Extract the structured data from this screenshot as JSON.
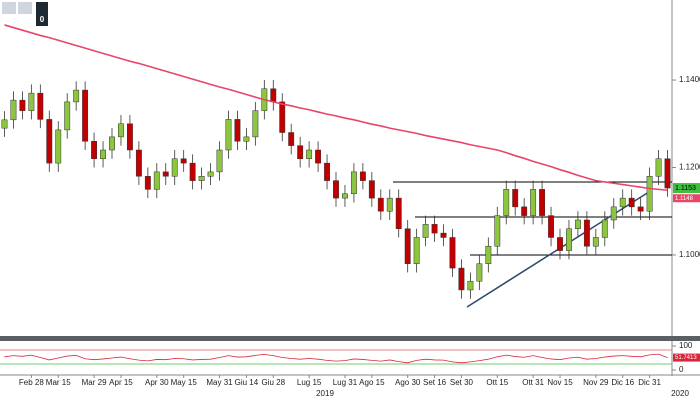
{
  "toolbar": {
    "badge": "0"
  },
  "years": [
    "2019",
    "2020"
  ],
  "chart_data": {
    "type": "candlestick",
    "categories": [
      null,
      null,
      null,
      "Feb 28",
      null,
      null,
      "Mar 15",
      null,
      null,
      null,
      "Mar 29",
      null,
      null,
      "Apr 15",
      null,
      null,
      null,
      "Apr 30",
      null,
      null,
      "May 15",
      null,
      null,
      null,
      "May 31",
      null,
      null,
      "Giu 14",
      null,
      null,
      "Giu 28",
      null,
      null,
      null,
      "Lug 15",
      null,
      null,
      null,
      "Lug 31",
      null,
      null,
      "Ago 15",
      null,
      null,
      null,
      "Ago 30",
      null,
      null,
      "Set 16",
      null,
      null,
      "Set 30",
      null,
      null,
      null,
      "Ott 15",
      null,
      null,
      null,
      "Ott 31",
      null,
      null,
      "Nov 15",
      null,
      null,
      null,
      "Nov 29",
      null,
      null,
      "Dic 16",
      null,
      null,
      "Dic 31",
      null,
      null
    ],
    "open": [
      1.129,
      1.1309,
      1.1354,
      1.133,
      1.137,
      1.131,
      1.121,
      1.1286,
      1.135,
      1.1377,
      1.126,
      1.122,
      1.124,
      1.127,
      1.13,
      1.124,
      1.118,
      1.115,
      1.119,
      1.118,
      1.122,
      1.121,
      1.117,
      1.118,
      1.119,
      1.124,
      1.131,
      1.126,
      1.127,
      1.133,
      1.138,
      1.135,
      1.128,
      1.125,
      1.122,
      1.124,
      1.121,
      1.117,
      1.113,
      1.114,
      1.119,
      1.117,
      1.113,
      1.11,
      1.113,
      1.106,
      1.098,
      1.104,
      1.107,
      1.105,
      1.104,
      1.097,
      1.092,
      1.094,
      1.098,
      1.102,
      1.109,
      1.115,
      1.111,
      1.109,
      1.115,
      1.109,
      1.104,
      1.101,
      1.106,
      1.108,
      1.102,
      1.104,
      1.108,
      1.111,
      1.113,
      1.111,
      1.11,
      1.118,
      1.122
    ],
    "high": [
      1.1329,
      1.1374,
      1.1374,
      1.139,
      1.139,
      1.133,
      1.1306,
      1.137,
      1.1397,
      1.1397,
      1.128,
      1.126,
      1.129,
      1.132,
      1.132,
      1.126,
      1.12,
      1.121,
      1.121,
      1.124,
      1.124,
      1.123,
      1.12,
      1.121,
      1.126,
      1.133,
      1.133,
      1.129,
      1.135,
      1.14,
      1.14,
      1.137,
      1.13,
      1.127,
      1.126,
      1.126,
      1.123,
      1.119,
      1.116,
      1.121,
      1.121,
      1.119,
      1.115,
      1.115,
      1.115,
      1.108,
      1.106,
      1.109,
      1.109,
      1.107,
      1.106,
      1.099,
      1.096,
      1.1,
      1.104,
      1.111,
      1.117,
      1.117,
      1.113,
      1.117,
      1.117,
      1.111,
      1.106,
      1.108,
      1.11,
      1.11,
      1.106,
      1.11,
      1.113,
      1.115,
      1.115,
      1.113,
      1.12,
      1.124,
      1.124
    ],
    "low": [
      1.127,
      1.1289,
      1.131,
      1.131,
      1.129,
      1.119,
      1.119,
      1.1266,
      1.133,
      1.124,
      1.12,
      1.12,
      1.122,
      1.125,
      1.122,
      1.116,
      1.113,
      1.113,
      1.116,
      1.116,
      1.119,
      1.115,
      1.115,
      1.116,
      1.117,
      1.122,
      1.124,
      1.124,
      1.125,
      1.131,
      1.133,
      1.126,
      1.123,
      1.12,
      1.12,
      1.119,
      1.115,
      1.111,
      1.111,
      1.112,
      1.115,
      1.111,
      1.108,
      1.108,
      1.104,
      1.096,
      1.096,
      1.102,
      1.103,
      1.102,
      1.095,
      1.09,
      1.09,
      1.092,
      1.096,
      1.1,
      1.107,
      1.109,
      1.107,
      1.107,
      1.107,
      1.102,
      1.099,
      1.099,
      1.104,
      1.1,
      1.1,
      1.102,
      1.106,
      1.109,
      1.109,
      1.108,
      1.108,
      1.116,
      1.1133
    ],
    "close": [
      1.1309,
      1.1354,
      1.133,
      1.137,
      1.131,
      1.121,
      1.1286,
      1.135,
      1.1377,
      1.126,
      1.122,
      1.124,
      1.127,
      1.13,
      1.124,
      1.118,
      1.115,
      1.119,
      1.118,
      1.122,
      1.121,
      1.117,
      1.118,
      1.119,
      1.124,
      1.131,
      1.126,
      1.127,
      1.133,
      1.138,
      1.135,
      1.128,
      1.125,
      1.122,
      1.124,
      1.121,
      1.117,
      1.113,
      1.114,
      1.119,
      1.117,
      1.113,
      1.11,
      1.113,
      1.106,
      1.098,
      1.104,
      1.107,
      1.105,
      1.104,
      1.097,
      1.092,
      1.094,
      1.098,
      1.102,
      1.109,
      1.115,
      1.111,
      1.109,
      1.115,
      1.109,
      1.104,
      1.101,
      1.106,
      1.108,
      1.102,
      1.104,
      1.108,
      1.111,
      1.113,
      1.111,
      1.11,
      1.118,
      1.122,
      1.1153
    ],
    "up_color": "#8cc63f",
    "down_color": "#c00000",
    "moving_average": {
      "color": "#e8456a",
      "values": [
        1.1526,
        1.152,
        1.1514,
        1.1508,
        1.1502,
        1.1497,
        1.1491,
        1.1485,
        1.1479,
        1.1473,
        1.1467,
        1.1461,
        1.1455,
        1.1449,
        1.1443,
        1.1438,
        1.1432,
        1.1426,
        1.142,
        1.1414,
        1.1408,
        1.1402,
        1.1396,
        1.139,
        1.1384,
        1.1379,
        1.1373,
        1.1367,
        1.1361,
        1.1355,
        1.135,
        1.1345,
        1.1341,
        1.1336,
        1.1332,
        1.1327,
        1.1322,
        1.1318,
        1.1313,
        1.1309,
        1.1304,
        1.1299,
        1.1295,
        1.129,
        1.1286,
        1.1282,
        1.1278,
        1.1273,
        1.1269,
        1.1265,
        1.1261,
        1.1257,
        1.1252,
        1.1248,
        1.1244,
        1.124,
        1.1234,
        1.1227,
        1.1221,
        1.1214,
        1.1208,
        1.1202,
        1.1195,
        1.1189,
        1.1182,
        1.1176,
        1.117,
        1.1167,
        1.1164,
        1.1161,
        1.1158,
        1.1155,
        1.1152,
        1.115,
        1.1148
      ]
    },
    "ylim": [
      1.0817,
      1.1583
    ],
    "yticks": [
      {
        "value": 1.1,
        "label": "1.1000"
      },
      {
        "value": 1.12,
        "label": "1.1200"
      },
      {
        "value": 1.14,
        "label": "1.1400"
      }
    ],
    "rsi": {
      "color": "#d9263a",
      "ylim": [
        0,
        100
      ],
      "yticks": [
        0,
        100
      ],
      "values": [
        55,
        60,
        57,
        62,
        52,
        42,
        50,
        58,
        61,
        47,
        43,
        46,
        50,
        54,
        47,
        41,
        38,
        44,
        43,
        48,
        47,
        42,
        44,
        45,
        52,
        60,
        54,
        55,
        61,
        65,
        60,
        52,
        48,
        45,
        48,
        45,
        40,
        37,
        39,
        46,
        44,
        40,
        37,
        42,
        35,
        30,
        40,
        45,
        42,
        41,
        34,
        30,
        34,
        39,
        45,
        55,
        62,
        56,
        53,
        60,
        52,
        46,
        43,
        50,
        53,
        45,
        48,
        54,
        58,
        60,
        57,
        55,
        63,
        66,
        51.7413
      ]
    }
  }
}
